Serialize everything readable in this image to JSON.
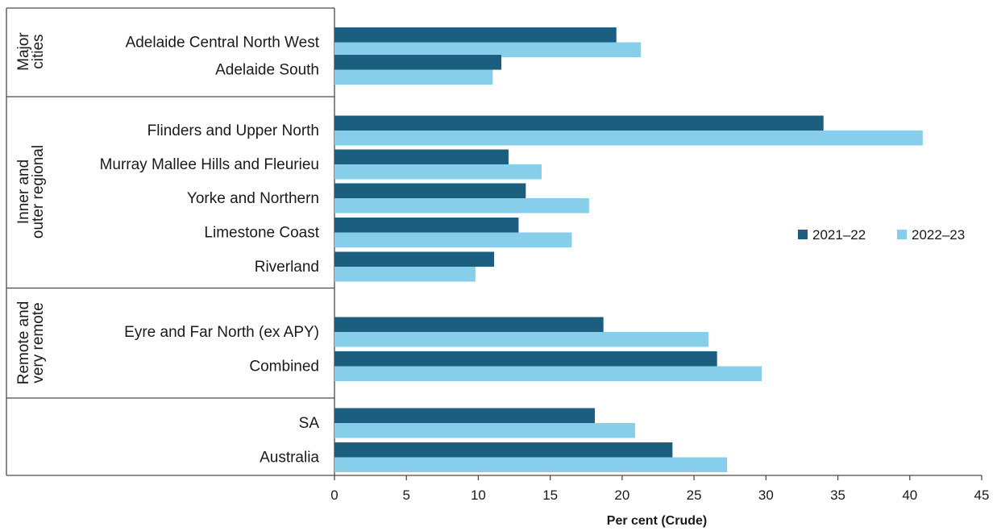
{
  "chart_data": {
    "type": "bar",
    "orientation": "horizontal",
    "groups": [
      {
        "label": [
          "Major",
          "cities"
        ],
        "categories": [
          "Adelaide Central North West",
          "Adelaide South"
        ]
      },
      {
        "label": [
          "Inner and",
          "outer regional"
        ],
        "categories": [
          "Flinders and Upper North",
          "Murray Mallee Hills and Fleurieu",
          "Yorke and Northern",
          "Limestone Coast",
          "Riverland"
        ]
      },
      {
        "label": [
          "Remote and",
          "very remote"
        ],
        "categories": [
          "Eyre and Far North (ex APY)",
          "Combined"
        ]
      },
      {
        "label": [],
        "categories": [
          "SA",
          "Australia"
        ]
      }
    ],
    "categories": [
      "Adelaide Central North West",
      "Adelaide South",
      "Flinders and Upper North",
      "Murray Mallee Hills and Fleurieu",
      "Yorke and Northern",
      "Limestone Coast",
      "Riverland",
      "Eyre and Far North (ex APY)",
      "Combined",
      "SA",
      "Australia"
    ],
    "series": [
      {
        "name": "2021–22",
        "color": "#1b5e7f",
        "values": [
          19.6,
          11.6,
          34.0,
          12.1,
          13.3,
          12.8,
          11.1,
          18.7,
          26.6,
          18.1,
          23.5
        ]
      },
      {
        "name": "2022–23",
        "color": "#87ceeb",
        "values": [
          21.3,
          11.0,
          40.9,
          14.4,
          17.7,
          16.5,
          9.8,
          26.0,
          29.7,
          20.9,
          27.3
        ]
      }
    ],
    "xlabel": "Per cent (Crude)",
    "xlim": [
      0,
      45
    ],
    "xticks": [
      0,
      5,
      10,
      15,
      20,
      25,
      30,
      35,
      40,
      45
    ],
    "legend_position": "right",
    "grid": false
  }
}
